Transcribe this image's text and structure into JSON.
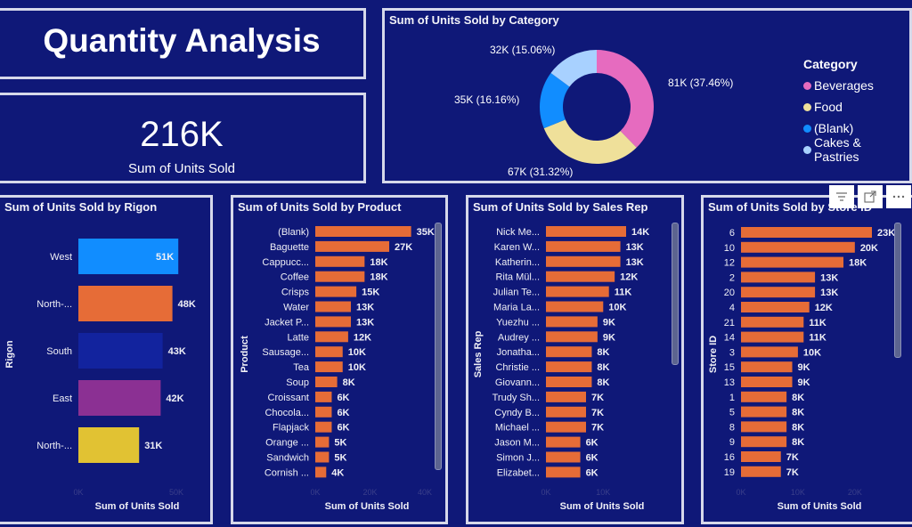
{
  "title": "Quantity Analysis",
  "kpi": {
    "value": "216K",
    "label": "Sum of Units Sold"
  },
  "visual_header": {
    "filter_icon": "filter-icon",
    "focus_icon": "focus-mode-icon",
    "more_icon": "more-options-icon"
  },
  "chart_data": [
    {
      "type": "pie",
      "variant": "donut",
      "title": "Sum of Units Sold by Category",
      "legend_title": "Category",
      "legend_position": "right",
      "categories": [
        "Beverages",
        "Food",
        "(Blank)",
        "Cakes & Pastries"
      ],
      "values": [
        81,
        67,
        35,
        32
      ],
      "percents": [
        37.46,
        31.32,
        16.16,
        15.06
      ],
      "labels": [
        "81K (37.46%)",
        "67K (31.32%)",
        "35K (16.16%)",
        "32K (15.06%)"
      ],
      "colors": [
        "#e66bbf",
        "#efe09a",
        "#118dff",
        "#a8d1ff"
      ]
    },
    {
      "type": "bar",
      "orientation": "horizontal",
      "title": "Sum of Units Sold by Rigon",
      "xlabel": "Sum of Units Sold",
      "ylabel": "Rigon",
      "categories": [
        "West",
        "North-...",
        "South",
        "East",
        "North-..."
      ],
      "values": [
        51,
        48,
        43,
        42,
        31
      ],
      "value_labels": [
        "51K",
        "48K",
        "43K",
        "42K",
        "31K"
      ],
      "colors": [
        "#118dff",
        "#e66c37",
        "#12239e",
        "#8b3093",
        "#e1c233"
      ],
      "xticks": [
        "0K",
        "50K"
      ],
      "xlim": [
        0,
        50
      ]
    },
    {
      "type": "bar",
      "orientation": "horizontal",
      "title": "Sum of Units Sold by Product",
      "xlabel": "Sum of Units Sold",
      "ylabel": "Product",
      "categories": [
        "(Blank)",
        "Baguette",
        "Cappucc...",
        "Coffee",
        "Crisps",
        "Water",
        "Jacket P...",
        "Latte",
        "Sausage...",
        "Tea",
        "Soup",
        "Croissant",
        "Chocola...",
        "Flapjack",
        "Orange ...",
        "Sandwich",
        "Cornish ..."
      ],
      "values": [
        35,
        27,
        18,
        18,
        15,
        13,
        13,
        12,
        10,
        10,
        8,
        6,
        6,
        6,
        5,
        5,
        4
      ],
      "value_labels": [
        "35K",
        "27K",
        "18K",
        "18K",
        "15K",
        "13K",
        "13K",
        "12K",
        "10K",
        "10K",
        "8K",
        "6K",
        "6K",
        "6K",
        "5K",
        "5K",
        "4K"
      ],
      "color": "#e66c37",
      "xticks": [
        "0K",
        "20K",
        "40K"
      ],
      "xlim": [
        0,
        40
      ]
    },
    {
      "type": "bar",
      "orientation": "horizontal",
      "title": "Sum of Units Sold by Sales Rep",
      "xlabel": "Sum of Units Sold",
      "ylabel": "Sales Rep",
      "categories": [
        "Nick Me...",
        "Karen W...",
        "Katherin...",
        "Rita Mül...",
        "Julian Te...",
        "Maria La...",
        "Yuezhu ...",
        "Audrey ...",
        "Jonatha...",
        "Christie ...",
        "Giovann...",
        "Trudy Sh...",
        "Cyndy B...",
        "Michael ...",
        "Jason M...",
        "Simon J...",
        "Elizabet..."
      ],
      "values": [
        14,
        13,
        13,
        12,
        11,
        10,
        9,
        9,
        8,
        8,
        8,
        7,
        7,
        7,
        6,
        6,
        6
      ],
      "value_labels": [
        "14K",
        "13K",
        "13K",
        "12K",
        "11K",
        "10K",
        "9K",
        "9K",
        "8K",
        "8K",
        "8K",
        "7K",
        "7K",
        "7K",
        "6K",
        "6K",
        "6K"
      ],
      "color": "#e66c37",
      "xticks": [
        "0K",
        "10K"
      ],
      "xlim": [
        0,
        14
      ]
    },
    {
      "type": "bar",
      "orientation": "horizontal",
      "title": "Sum of Units Sold by Store ID",
      "xlabel": "Sum of Units Sold",
      "ylabel": "Store ID",
      "categories": [
        "6",
        "10",
        "12",
        "2",
        "20",
        "4",
        "21",
        "14",
        "3",
        "15",
        "13",
        "1",
        "5",
        "8",
        "9",
        "16",
        "19"
      ],
      "values": [
        23,
        20,
        18,
        13,
        13,
        12,
        11,
        11,
        10,
        9,
        9,
        8,
        8,
        8,
        8,
        7,
        7
      ],
      "value_labels": [
        "23K",
        "20K",
        "18K",
        "13K",
        "13K",
        "12K",
        "11K",
        "11K",
        "10K",
        "9K",
        "9K",
        "8K",
        "8K",
        "8K",
        "8K",
        "7K",
        "7K"
      ],
      "color": "#e66c37",
      "xticks": [
        "0K",
        "10K",
        "20K"
      ],
      "xlim": [
        0,
        23
      ]
    }
  ]
}
